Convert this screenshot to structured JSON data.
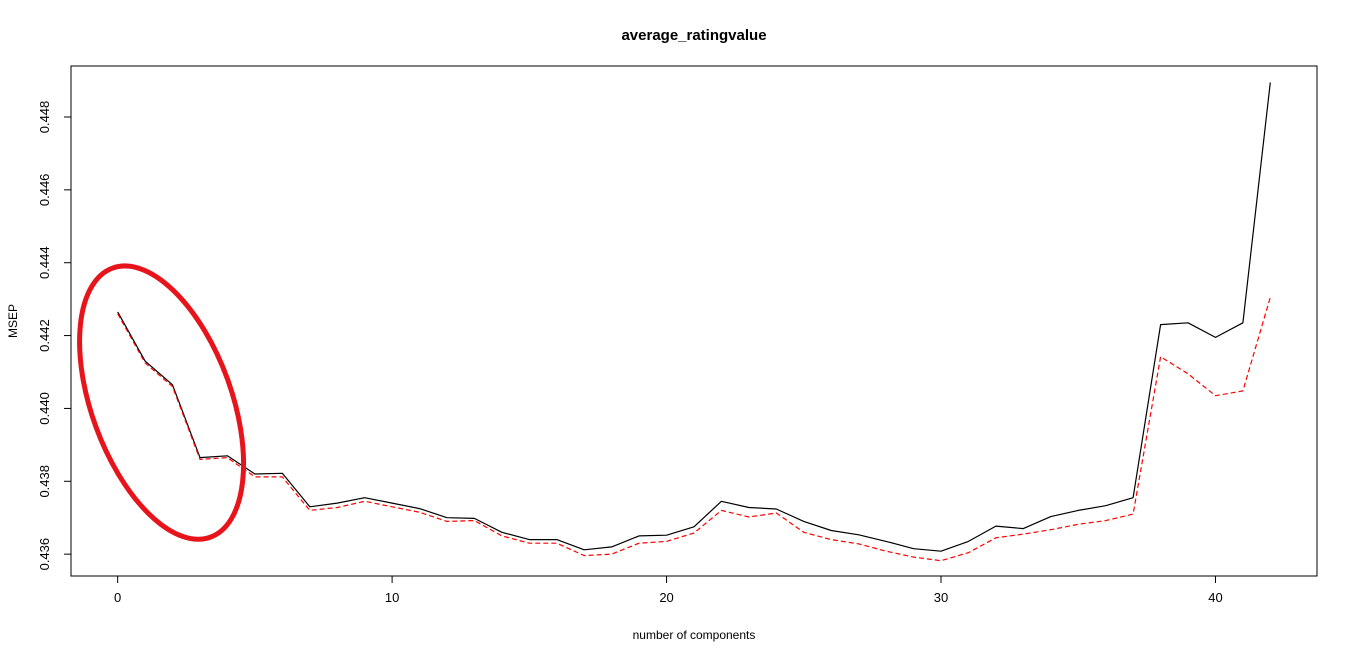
{
  "chart_data": {
    "type": "line",
    "title": "average_ratingvalue",
    "xlabel": "number of components",
    "ylabel": "MSEP",
    "xlim": [
      -1.7,
      43.7
    ],
    "ylim": [
      0.4354,
      0.4494
    ],
    "xticks": [
      0,
      10,
      20,
      30,
      40
    ],
    "yticks": [
      0.436,
      0.438,
      0.44,
      0.442,
      0.444,
      0.446,
      0.448
    ],
    "ytick_labels": [
      "0.436",
      "0.438",
      "0.440",
      "0.442",
      "0.444",
      "0.446",
      "0.448"
    ],
    "grid": false,
    "legend": "none",
    "x": [
      0,
      1,
      2,
      3,
      4,
      5,
      6,
      7,
      8,
      9,
      10,
      11,
      12,
      13,
      14,
      15,
      16,
      17,
      18,
      19,
      20,
      21,
      22,
      23,
      24,
      25,
      26,
      27,
      28,
      29,
      30,
      31,
      32,
      33,
      34,
      35,
      36,
      37,
      38,
      39,
      40,
      41,
      42
    ],
    "series": [
      {
        "color": "#000000",
        "style": "solid",
        "values": [
          0.44265,
          0.4413,
          0.44065,
          0.43865,
          0.4387,
          0.4382,
          0.43822,
          0.4373,
          0.4374,
          0.43755,
          0.4374,
          0.43725,
          0.437,
          0.43698,
          0.4366,
          0.4364,
          0.4364,
          0.43612,
          0.4362,
          0.4365,
          0.43652,
          0.43675,
          0.43745,
          0.43728,
          0.43724,
          0.4369,
          0.43665,
          0.43653,
          0.43635,
          0.43615,
          0.43608,
          0.43635,
          0.43677,
          0.4367,
          0.43703,
          0.4372,
          0.43733,
          0.43755,
          0.4423,
          0.44235,
          0.44195,
          0.44235,
          0.44895
        ]
      },
      {
        "color": "#ff0000",
        "style": "dashed",
        "values": [
          0.4426,
          0.44125,
          0.4406,
          0.4386,
          0.43865,
          0.43812,
          0.43812,
          0.4372,
          0.43728,
          0.43745,
          0.4373,
          0.43715,
          0.4369,
          0.43692,
          0.4365,
          0.4363,
          0.4363,
          0.43596,
          0.436,
          0.4363,
          0.43635,
          0.43658,
          0.4372,
          0.43702,
          0.43713,
          0.4366,
          0.4364,
          0.43628,
          0.43608,
          0.43592,
          0.43582,
          0.43604,
          0.43645,
          0.43655,
          0.43667,
          0.43682,
          0.43692,
          0.4371,
          0.44142,
          0.44095,
          0.44035,
          0.44048,
          0.44305
        ]
      }
    ],
    "annotations": [
      {
        "type": "ellipse",
        "color": "#e8141c",
        "cx": 1.6,
        "cy": 0.44016,
        "rx_x": 2.55,
        "ry_y": 0.00393,
        "angle_deg": -20
      }
    ]
  }
}
